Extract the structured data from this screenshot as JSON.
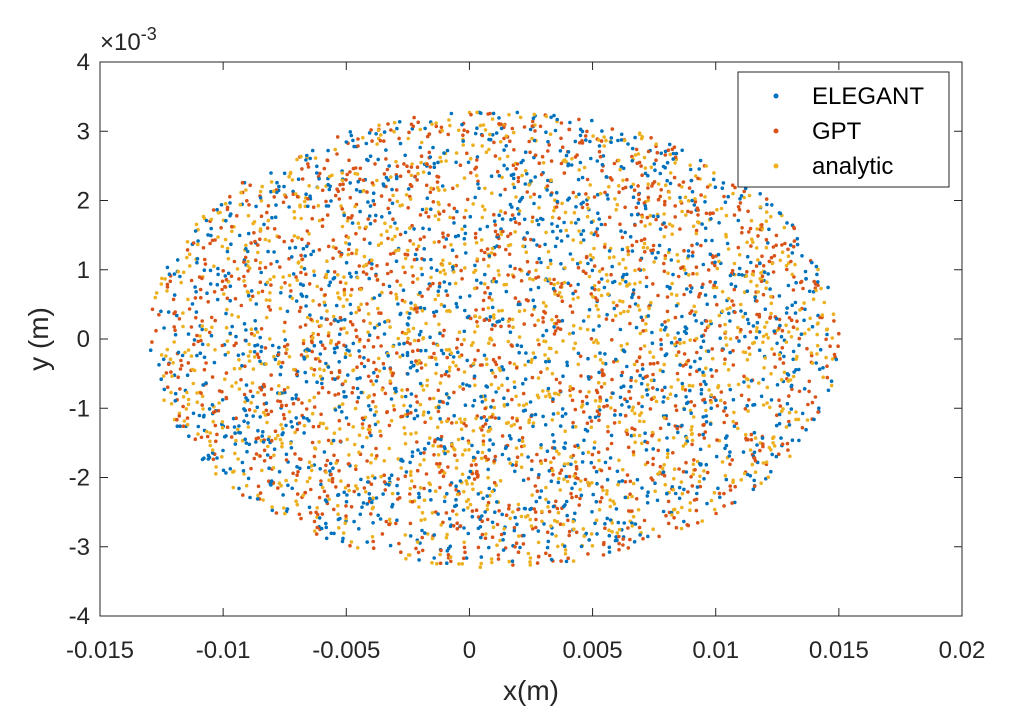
{
  "chart_data": {
    "type": "scatter",
    "title": "",
    "xlabel": "x(m)",
    "ylabel": "y (m)",
    "xlim": [
      -0.015,
      0.02
    ],
    "ylim": [
      -4,
      4
    ],
    "y_exponent_label": "×10",
    "y_exponent_power": "-3",
    "x_ticks": [
      -0.015,
      -0.01,
      -0.005,
      0,
      0.005,
      0.01,
      0.015,
      0.02
    ],
    "x_tick_labels": [
      "-0.015",
      "-0.01",
      "-0.005",
      "0",
      "0.005",
      "0.01",
      "0.015",
      "0.02"
    ],
    "y_ticks": [
      -4,
      -3,
      -2,
      -1,
      0,
      1,
      2,
      3,
      4
    ],
    "y_tick_labels": [
      "-4",
      "-3",
      "-2",
      "-1",
      "0",
      "1",
      "2",
      "3",
      "4"
    ],
    "grid": false,
    "legend_position": "top-right",
    "point_distribution": {
      "shape": "ellipse",
      "center_x": 0.001,
      "center_y": 0,
      "half_width_x": 0.014,
      "half_height_y": 3.3,
      "points_per_series": 1500
    },
    "series": [
      {
        "name": "ELEGANT",
        "color": "#0072BD"
      },
      {
        "name": "GPT",
        "color": "#D95319"
      },
      {
        "name": "analytic",
        "color": "#EDB120"
      }
    ]
  }
}
